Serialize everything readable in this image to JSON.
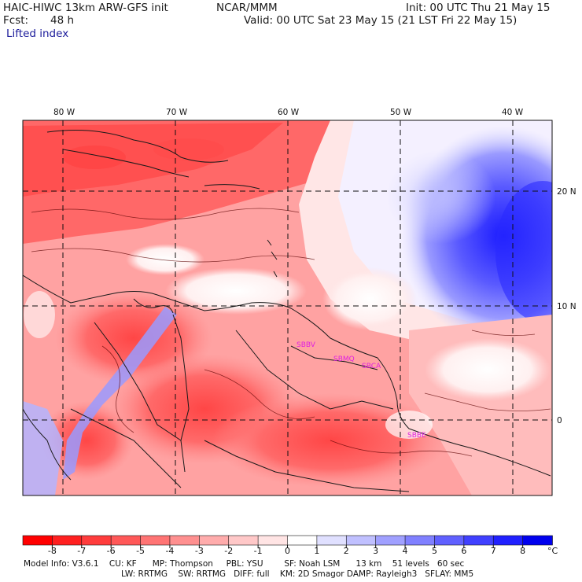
{
  "header": {
    "model_title": "HAIC-HIWC 13km ARW-GFS init",
    "org": "NCAR/MMM",
    "init": "Init: 00 UTC Thu 21 May 15",
    "fcst_label": "Fcst:",
    "fcst_value": "48 h",
    "valid": "Valid: 00 UTC Sat 23 May 15 (21 LST Fri 22 May 15)",
    "field": "Lifted index"
  },
  "map": {
    "lon_labels": [
      "80 W",
      "70 W",
      "60 W",
      "50 W",
      "40 W"
    ],
    "lat_labels": [
      "20 N",
      "10 N",
      "0"
    ],
    "stations": [
      "SBBV",
      "SBMQ",
      "SBCA",
      "SBBE"
    ]
  },
  "colorbar": {
    "ticks": [
      "-8",
      "-7",
      "-6",
      "-5",
      "-4",
      "-3",
      "-2",
      "-1",
      "0",
      "1",
      "2",
      "3",
      "4",
      "5",
      "6",
      "7",
      "8"
    ],
    "unit": "°C",
    "colors": [
      "#ff0000",
      "#ff2020",
      "#ff3c3c",
      "#ff5858",
      "#ff7474",
      "#ff9090",
      "#ffacac",
      "#ffc8c8",
      "#ffe4e4",
      "#ffffff",
      "#e0e0ff",
      "#c0c0ff",
      "#a0a0ff",
      "#8080ff",
      "#6060ff",
      "#4040ff",
      "#2020ff",
      "#0000ee"
    ]
  },
  "model_info": {
    "line1": "Model Info: V3.6.1    CU: KF      MP: Thompson     PBL: YSU        SF: Noah LSM      13 km    51 levels   60 sec",
    "line2": "LW: RRTMG    SW: RRTMG   DIFF: full    KM: 2D Smagor DAMP: Rayleigh3   SFLAY: MM5"
  }
}
